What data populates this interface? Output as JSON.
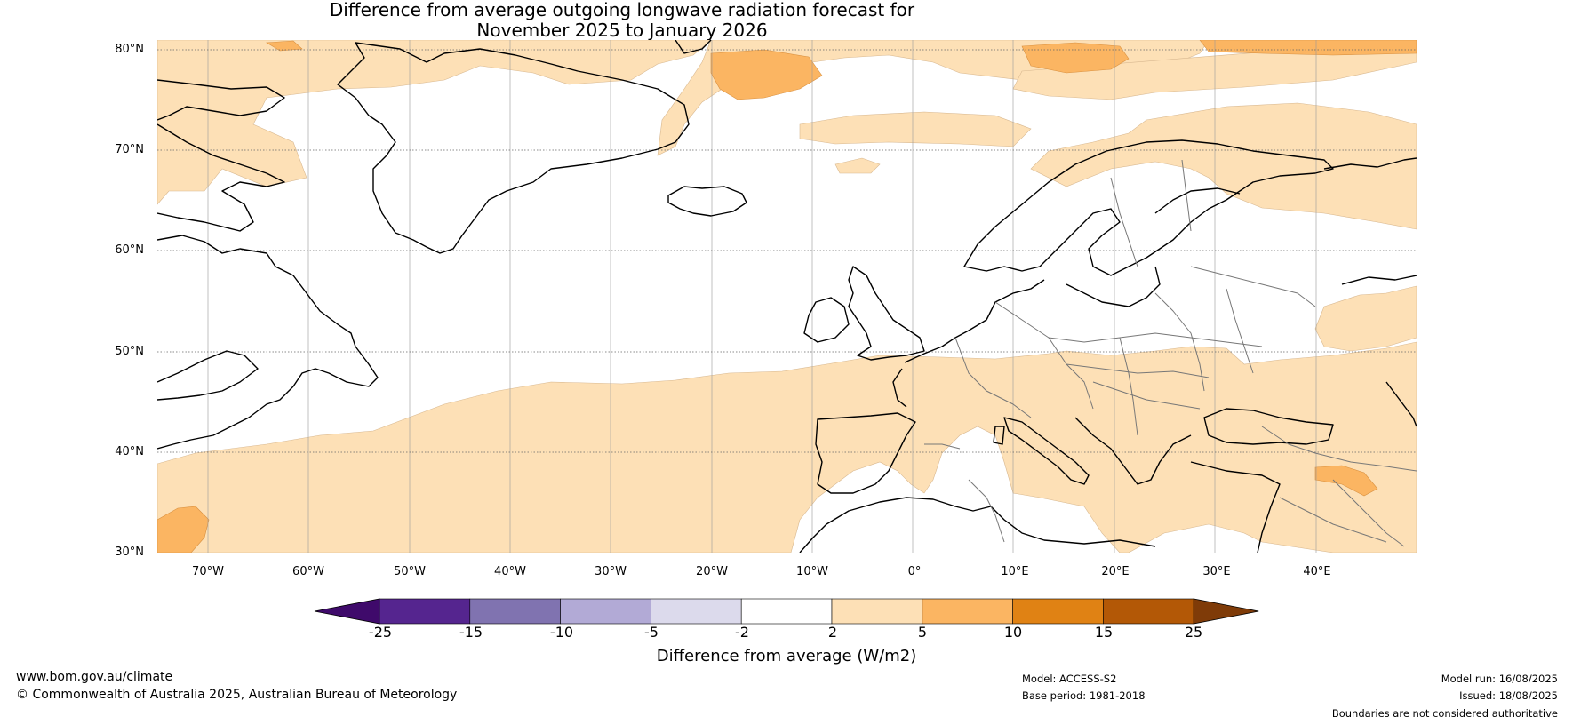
{
  "title_line1": "Difference from average outgoing longwave radiation forecast for",
  "title_line2": "November 2025 to January 2026",
  "lat_labels": [
    "80°N",
    "70°N",
    "60°N",
    "50°N",
    "40°N",
    "30°N"
  ],
  "lon_labels": [
    "70°W",
    "60°W",
    "50°W",
    "40°W",
    "30°W",
    "20°W",
    "10°W",
    "0°",
    "10°E",
    "20°E",
    "30°E",
    "40°E"
  ],
  "colorbar": {
    "ticks": [
      "-25",
      "-15",
      "-10",
      "-5",
      "-2",
      "2",
      "5",
      "10",
      "15",
      "25"
    ],
    "colors": [
      "#3f0a6b",
      "#55258f",
      "#8073b0",
      "#b2aad6",
      "#dcdaec",
      "#ffffff",
      "#fde0b6",
      "#fbb562",
      "#e08214",
      "#b35806",
      "#7f3b08"
    ],
    "label": "Difference from average (W/m2)"
  },
  "footer": {
    "website": "www.bom.gov.au/climate",
    "copyright": "© Commonwealth of Australia 2025, Australian Bureau of Meteorology",
    "model": "Model: ACCESS-S2",
    "base_period": "Base period: 1981-2018",
    "model_run": "Model run: 16/08/2025",
    "issued": "Issued: 18/08/2025",
    "disclaimer": "Boundaries are not considered authoritative"
  }
}
